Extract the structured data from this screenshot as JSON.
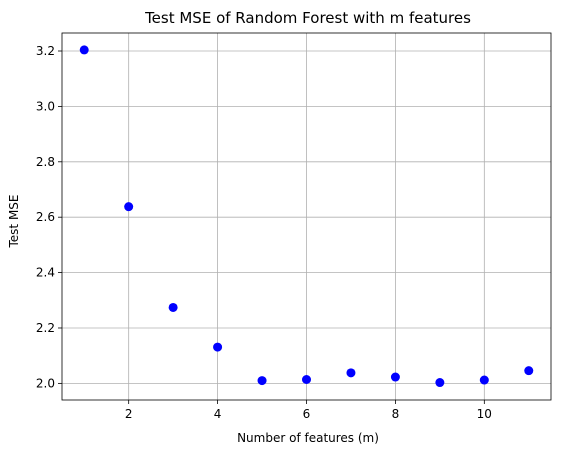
{
  "chart_data": {
    "type": "scatter",
    "title": "Test MSE of Random Forest with m features",
    "xlabel": "Number of features (m)",
    "ylabel": "Test MSE",
    "xlim": [
      0.5,
      11.5
    ],
    "ylim": [
      1.94,
      3.265
    ],
    "x_ticks": [
      2,
      4,
      6,
      8,
      10
    ],
    "y_ticks": [
      2.0,
      2.2,
      2.4,
      2.6,
      2.8,
      3.0,
      3.2
    ],
    "y_tick_labels": [
      "2.0",
      "2.2",
      "2.4",
      "2.6",
      "2.8",
      "3.0",
      "3.2"
    ],
    "grid": true,
    "marker_color": "#0000ff",
    "series": [
      {
        "x": [
          1,
          2,
          3,
          4,
          5,
          6,
          7,
          8,
          9,
          10,
          11
        ],
        "y": [
          3.204,
          2.638,
          2.274,
          2.131,
          2.01,
          2.014,
          2.038,
          2.023,
          2.003,
          2.012,
          2.046
        ]
      }
    ]
  }
}
